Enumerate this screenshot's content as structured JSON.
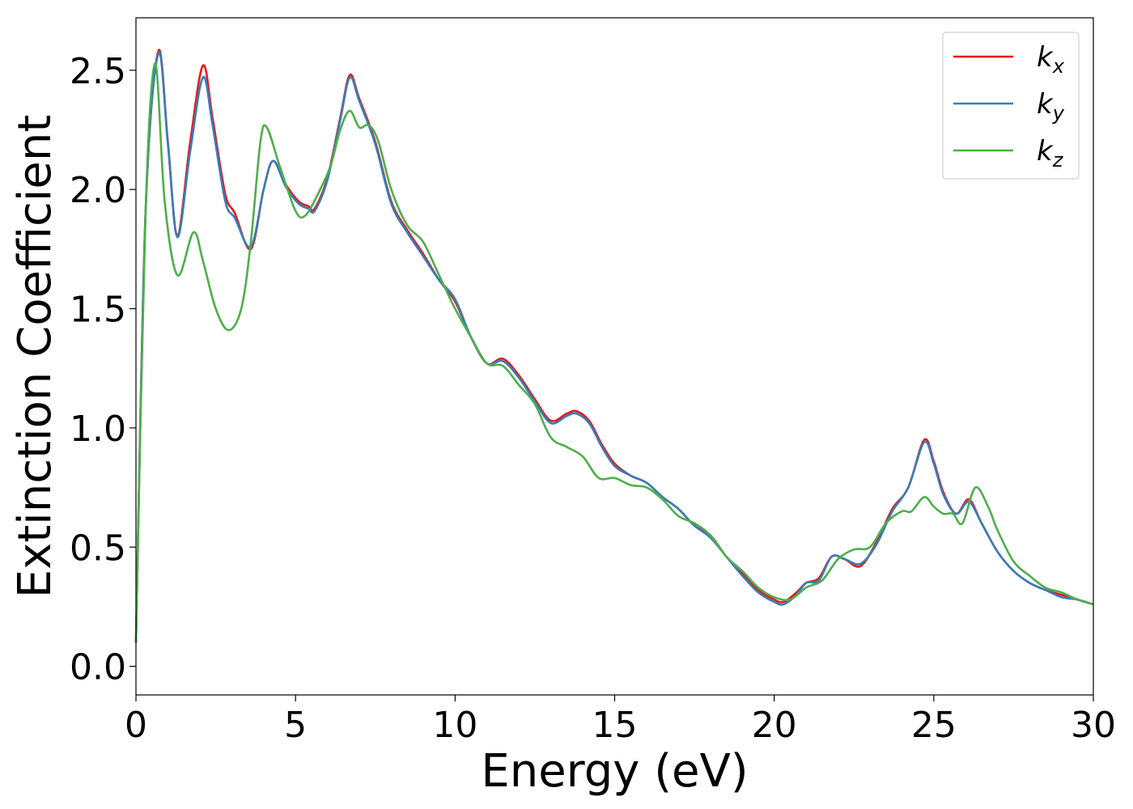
{
  "chart_data": {
    "type": "line",
    "title": "",
    "xlabel": "Energy (eV)",
    "ylabel": "Extinction Coefficient",
    "xlim": [
      0,
      30
    ],
    "ylim": [
      -0.12,
      2.72
    ],
    "xticks": [
      0,
      5,
      10,
      15,
      20,
      25,
      30
    ],
    "xtick_labels": [
      "0",
      "5",
      "10",
      "15",
      "20",
      "25",
      "30"
    ],
    "yticks": [
      0.0,
      0.5,
      1.0,
      1.5,
      2.0,
      2.5
    ],
    "ytick_labels": [
      "0.0",
      "0.5",
      "1.0",
      "1.5",
      "2.0",
      "2.5"
    ],
    "grid": false,
    "legend_position": "top-right",
    "legend": [
      {
        "base": "k",
        "sub": "x"
      },
      {
        "base": "k",
        "sub": "y"
      },
      {
        "base": "k",
        "sub": "z"
      }
    ],
    "colors": {
      "kx": "#e41a1c",
      "ky": "#377eb8",
      "kz": "#4daf4a"
    },
    "series": [
      {
        "name": "kx",
        "color": "#e41a1c",
        "x": [
          0,
          0.3,
          0.7,
          1.0,
          1.3,
          1.7,
          2.1,
          2.4,
          2.8,
          3.1,
          3.6,
          4.0,
          4.3,
          4.7,
          5.1,
          5.4,
          5.6,
          6.0,
          6.4,
          6.7,
          7.0,
          7.5,
          8.0,
          8.5,
          9.0,
          9.5,
          10.0,
          10.5,
          11.0,
          11.5,
          12.0,
          12.5,
          13.0,
          13.5,
          13.8,
          14.2,
          14.6,
          15.0,
          15.5,
          16.0,
          16.5,
          17.0,
          17.5,
          18.0,
          18.5,
          19.0,
          19.5,
          20.0,
          20.3,
          20.7,
          21.0,
          21.4,
          21.8,
          22.2,
          22.7,
          23.2,
          23.7,
          24.2,
          24.7,
          25.0,
          25.3,
          25.7,
          26.1,
          26.5,
          27.0,
          27.5,
          28.0,
          28.5,
          29.0,
          29.5,
          30.0
        ],
        "y": [
          0.1,
          1.9,
          2.58,
          2.2,
          1.81,
          2.2,
          2.52,
          2.3,
          1.98,
          1.9,
          1.75,
          2.0,
          2.12,
          2.02,
          1.95,
          1.93,
          1.92,
          2.05,
          2.3,
          2.48,
          2.38,
          2.2,
          1.95,
          1.83,
          1.73,
          1.62,
          1.53,
          1.38,
          1.27,
          1.29,
          1.22,
          1.12,
          1.03,
          1.06,
          1.07,
          1.03,
          0.93,
          0.85,
          0.8,
          0.77,
          0.71,
          0.66,
          0.59,
          0.55,
          0.46,
          0.39,
          0.32,
          0.28,
          0.27,
          0.31,
          0.35,
          0.37,
          0.46,
          0.45,
          0.42,
          0.52,
          0.66,
          0.75,
          0.95,
          0.86,
          0.73,
          0.64,
          0.7,
          0.6,
          0.48,
          0.4,
          0.35,
          0.32,
          0.3,
          0.28,
          0.26
        ]
      },
      {
        "name": "ky",
        "color": "#377eb8",
        "x": [
          0,
          0.3,
          0.7,
          1.0,
          1.3,
          1.7,
          2.1,
          2.4,
          2.8,
          3.1,
          3.6,
          4.0,
          4.3,
          4.7,
          5.1,
          5.4,
          5.6,
          6.0,
          6.4,
          6.7,
          7.0,
          7.5,
          8.0,
          8.5,
          9.0,
          9.5,
          10.0,
          10.5,
          11.0,
          11.5,
          12.0,
          12.5,
          13.0,
          13.5,
          13.8,
          14.2,
          14.6,
          15.0,
          15.5,
          16.0,
          16.5,
          17.0,
          17.5,
          18.0,
          18.5,
          19.0,
          19.5,
          20.0,
          20.3,
          20.7,
          21.0,
          21.4,
          21.8,
          22.2,
          22.7,
          23.2,
          23.7,
          24.2,
          24.7,
          25.0,
          25.3,
          25.7,
          26.1,
          26.5,
          27.0,
          27.5,
          28.0,
          28.5,
          29.0,
          29.5,
          30.0
        ],
        "y": [
          0.1,
          1.9,
          2.57,
          2.19,
          1.8,
          2.16,
          2.47,
          2.27,
          1.95,
          1.88,
          1.76,
          2.0,
          2.12,
          2.01,
          1.94,
          1.92,
          1.91,
          2.04,
          2.29,
          2.47,
          2.37,
          2.19,
          1.94,
          1.82,
          1.72,
          1.62,
          1.54,
          1.38,
          1.27,
          1.28,
          1.21,
          1.11,
          1.02,
          1.05,
          1.06,
          1.02,
          0.92,
          0.84,
          0.8,
          0.77,
          0.71,
          0.66,
          0.59,
          0.54,
          0.46,
          0.38,
          0.31,
          0.27,
          0.26,
          0.3,
          0.35,
          0.36,
          0.46,
          0.45,
          0.43,
          0.51,
          0.65,
          0.75,
          0.94,
          0.85,
          0.72,
          0.64,
          0.69,
          0.6,
          0.48,
          0.4,
          0.35,
          0.32,
          0.29,
          0.28,
          0.26
        ]
      },
      {
        "name": "kz",
        "color": "#4daf4a",
        "x": [
          0,
          0.3,
          0.6,
          0.9,
          1.3,
          1.8,
          2.1,
          2.5,
          2.9,
          3.3,
          3.6,
          3.9,
          4.1,
          4.5,
          5.0,
          5.3,
          5.7,
          6.1,
          6.4,
          6.7,
          7.0,
          7.3,
          7.6,
          8.0,
          8.5,
          9.0,
          9.5,
          10.0,
          10.5,
          11.0,
          11.5,
          12.0,
          12.5,
          13.0,
          13.5,
          14.0,
          14.5,
          15.0,
          15.5,
          16.0,
          16.5,
          17.0,
          17.5,
          18.0,
          18.5,
          19.0,
          19.5,
          20.0,
          20.5,
          21.0,
          21.5,
          22.0,
          22.5,
          23.0,
          23.5,
          24.0,
          24.3,
          24.7,
          25.0,
          25.3,
          25.6,
          25.9,
          26.3,
          26.7,
          27.0,
          27.5,
          28.0,
          28.5,
          29.0,
          29.5,
          30.0
        ],
        "y": [
          0.1,
          1.9,
          2.53,
          1.95,
          1.64,
          1.82,
          1.7,
          1.5,
          1.41,
          1.5,
          1.78,
          2.2,
          2.26,
          2.1,
          1.91,
          1.89,
          1.98,
          2.1,
          2.25,
          2.33,
          2.26,
          2.27,
          2.2,
          2.0,
          1.85,
          1.78,
          1.64,
          1.5,
          1.38,
          1.27,
          1.26,
          1.18,
          1.1,
          0.96,
          0.92,
          0.88,
          0.79,
          0.79,
          0.76,
          0.75,
          0.7,
          0.63,
          0.6,
          0.55,
          0.46,
          0.4,
          0.33,
          0.29,
          0.28,
          0.33,
          0.36,
          0.45,
          0.49,
          0.5,
          0.6,
          0.65,
          0.65,
          0.71,
          0.67,
          0.64,
          0.64,
          0.6,
          0.75,
          0.67,
          0.57,
          0.44,
          0.38,
          0.33,
          0.31,
          0.28,
          0.26
        ]
      }
    ]
  }
}
